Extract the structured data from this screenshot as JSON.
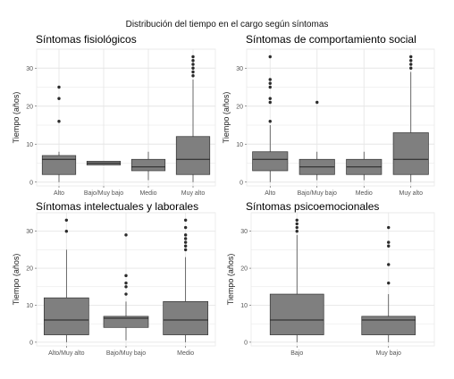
{
  "figure": {
    "suptitle": "Distribución del tiempo en el cargo según síntomas",
    "colors": {
      "box_fill": "#7f7f7f",
      "box_line": "#333333",
      "outlier": "#2b2b2b",
      "panel_bg": "#ffffff",
      "grid": "#e6e6e6"
    }
  },
  "chart_data": [
    {
      "type": "box",
      "title": "Síntomas fisiológicos",
      "ylabel": "Tiempo (años)",
      "xlabel": "",
      "ylim": [
        -1,
        35
      ],
      "yticks": [
        0,
        10,
        20,
        30
      ],
      "grid": true,
      "categories": [
        "Alto",
        "Bajo/Muy bajo",
        "Medio",
        "Muy alto"
      ],
      "boxes": [
        {
          "q1": 2,
          "median": 6,
          "q3": 7,
          "whisker_low": 0,
          "whisker_high": 8,
          "outliers": [
            16,
            22,
            25
          ]
        },
        {
          "q1": 4.5,
          "median": 5,
          "q3": 5.5,
          "whisker_low": 4.5,
          "whisker_high": 5.5,
          "outliers": []
        },
        {
          "q1": 3,
          "median": 4,
          "q3": 6,
          "whisker_low": 0.5,
          "whisker_high": 8,
          "outliers": []
        },
        {
          "q1": 2,
          "median": 6,
          "q3": 12,
          "whisker_low": 0,
          "whisker_high": 27,
          "outliers": [
            28,
            29,
            30,
            31,
            32,
            33
          ]
        }
      ]
    },
    {
      "type": "box",
      "title": "Síntomas de comportamiento social",
      "ylabel": "Tiempo (años)",
      "xlabel": "",
      "ylim": [
        -1,
        35
      ],
      "yticks": [
        0,
        10,
        20,
        30
      ],
      "grid": true,
      "categories": [
        "Alto",
        "Bajo/Muy bajo",
        "Medio",
        "Muy alto"
      ],
      "boxes": [
        {
          "q1": 3,
          "median": 6,
          "q3": 8,
          "whisker_low": 0,
          "whisker_high": 15,
          "outliers": [
            16,
            21,
            22,
            25,
            26,
            27,
            33
          ]
        },
        {
          "q1": 2,
          "median": 4,
          "q3": 6,
          "whisker_low": 0.5,
          "whisker_high": 8,
          "outliers": [
            21
          ]
        },
        {
          "q1": 2,
          "median": 4,
          "q3": 6,
          "whisker_low": 0.5,
          "whisker_high": 8,
          "outliers": []
        },
        {
          "q1": 2,
          "median": 6,
          "q3": 13,
          "whisker_low": 0,
          "whisker_high": 29,
          "outliers": [
            30,
            31,
            32,
            33
          ]
        }
      ]
    },
    {
      "type": "box",
      "title": "Síntomas intelectuales y laborales",
      "ylabel": "Tiempo (años)",
      "xlabel": "",
      "ylim": [
        -1,
        35
      ],
      "yticks": [
        0,
        10,
        20,
        30
      ],
      "grid": true,
      "categories": [
        "Alto/Muy alto",
        "Bajo/Muy bajo",
        "Medio"
      ],
      "boxes": [
        {
          "q1": 2,
          "median": 6,
          "q3": 12,
          "whisker_low": 0,
          "whisker_high": 25,
          "outliers": [
            30,
            33
          ]
        },
        {
          "q1": 4,
          "median": 6.5,
          "q3": 7,
          "whisker_low": 0.5,
          "whisker_high": 11,
          "outliers": [
            13,
            15,
            16,
            18,
            29
          ]
        },
        {
          "q1": 2,
          "median": 6,
          "q3": 11,
          "whisker_low": 0,
          "whisker_high": 23,
          "outliers": [
            25,
            26,
            27,
            28,
            29,
            31,
            33
          ]
        }
      ]
    },
    {
      "type": "box",
      "title": "Síntomas psicoemocionales",
      "ylabel": "Tiempo (años)",
      "xlabel": "",
      "ylim": [
        -1,
        35
      ],
      "yticks": [
        0,
        10,
        20,
        30
      ],
      "grid": true,
      "categories": [
        "Bajo",
        "Muy bajo"
      ],
      "boxes": [
        {
          "q1": 2,
          "median": 6,
          "q3": 13,
          "whisker_low": 0,
          "whisker_high": 29,
          "outliers": [
            30,
            31,
            32,
            33
          ]
        },
        {
          "q1": 2,
          "median": 6,
          "q3": 7,
          "whisker_low": 0,
          "whisker_high": 13,
          "outliers": [
            16,
            21,
            26,
            27,
            31
          ]
        }
      ]
    }
  ]
}
